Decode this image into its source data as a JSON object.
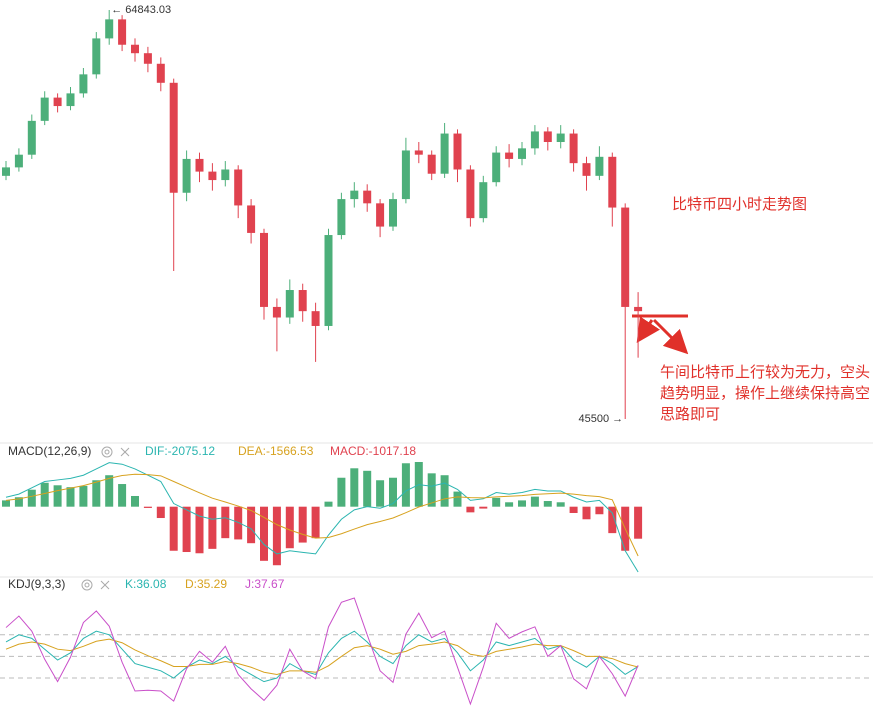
{
  "chart_data": [
    {
      "type": "candlestick",
      "title": "比特币四小时走势图",
      "annotation": "午间比特币上行较为无力，空头趋势明显，操作上继续保持高空思路即可",
      "up_color": "#4caf7a",
      "down_color": "#e0424f",
      "open": [
        57000,
        57400,
        58000,
        59600,
        60700,
        60300,
        60900,
        61800,
        63500,
        64400,
        63200,
        62800,
        62300,
        61400,
        56200,
        57800,
        57200,
        56800,
        57300,
        55600,
        54300,
        50800,
        50300,
        51600,
        50600,
        49900,
        54200,
        55900,
        56300,
        55700,
        54600,
        55900,
        58200,
        58000,
        57100,
        59000,
        57300,
        55000,
        56700,
        58100,
        57800,
        58300,
        59100,
        58600,
        59000,
        57600,
        57000,
        57900,
        55500,
        50800
      ],
      "close": [
        57400,
        58000,
        59600,
        60700,
        60300,
        60900,
        61800,
        63500,
        64400,
        63200,
        62800,
        62300,
        61400,
        56200,
        57800,
        57200,
        56800,
        57300,
        55600,
        54300,
        50800,
        50300,
        51600,
        50600,
        49900,
        54200,
        55900,
        56300,
        55700,
        54600,
        55900,
        58200,
        58000,
        57100,
        59000,
        57300,
        55000,
        56700,
        58100,
        57800,
        58300,
        59100,
        58600,
        59000,
        57600,
        57000,
        57900,
        55500,
        50800,
        50600
      ],
      "high": [
        57700,
        58300,
        59900,
        61000,
        60900,
        61200,
        62100,
        63800,
        64843.03,
        64600,
        63500,
        63100,
        62600,
        61600,
        58200,
        58100,
        57600,
        57700,
        57500,
        55900,
        54500,
        51200,
        52100,
        51900,
        51000,
        54500,
        56200,
        56700,
        56600,
        55900,
        56200,
        58800,
        58600,
        58200,
        59500,
        59200,
        57500,
        57000,
        58400,
        58500,
        58600,
        59400,
        59300,
        59400,
        59200,
        57900,
        58400,
        58100,
        55700,
        51500
      ],
      "low": [
        56800,
        57200,
        57800,
        59400,
        60000,
        60100,
        60700,
        61600,
        63200,
        62900,
        62400,
        61900,
        61000,
        52500,
        55800,
        56700,
        56300,
        56500,
        55000,
        53800,
        50200,
        48700,
        50000,
        50100,
        48200,
        49700,
        54000,
        55500,
        55300,
        54100,
        54400,
        55700,
        57600,
        56800,
        56900,
        56700,
        54600,
        54800,
        56500,
        57400,
        57500,
        58000,
        58200,
        58300,
        57200,
        56300,
        56800,
        54600,
        45500,
        48400
      ],
      "high_marker": {
        "value": 64843.03,
        "label": "← 64843.03"
      },
      "low_marker": {
        "value": 45500,
        "label": "45500 →"
      }
    },
    {
      "type": "combo",
      "title": "MACD(12,26,9)",
      "series": [
        {
          "label": "DIF:-2075.12",
          "color": "#2bb5b0",
          "kind": "line",
          "values": [
            300,
            400,
            600,
            800,
            850,
            900,
            1000,
            1200,
            1400,
            1350,
            1200,
            1000,
            800,
            100,
            -100,
            -300,
            -400,
            -350,
            -500,
            -700,
            -1200,
            -1500,
            -1400,
            -1450,
            -1500,
            -900,
            -400,
            -100,
            0,
            -50,
            100,
            500,
            700,
            650,
            750,
            550,
            200,
            250,
            450,
            400,
            450,
            550,
            500,
            500,
            300,
            150,
            200,
            -200,
            -1400,
            -2075.12
          ]
        },
        {
          "label": "DEA:-1566.53",
          "color": "#d7a21f",
          "kind": "line",
          "values": [
            200,
            250,
            330,
            420,
            510,
            590,
            670,
            780,
            900,
            990,
            1030,
            1020,
            980,
            800,
            620,
            440,
            270,
            150,
            20,
            -120,
            -340,
            -570,
            -740,
            -880,
            -1000,
            -980,
            -860,
            -710,
            -570,
            -470,
            -360,
            -190,
            -10,
            120,
            250,
            310,
            290,
            280,
            310,
            330,
            350,
            390,
            410,
            430,
            400,
            350,
            320,
            220,
            -700,
            -1566.53
          ]
        },
        {
          "label": "MACD:-1017.18",
          "color": "#e0424f",
          "up_color": "#4caf7a",
          "kind": "bar",
          "values": [
            200,
            300,
            540,
            760,
            680,
            620,
            660,
            840,
            1000,
            720,
            340,
            -40,
            -360,
            -1400,
            -1440,
            -1480,
            -1340,
            -1000,
            -1040,
            -1160,
            -1720,
            -1860,
            -1320,
            -1140,
            -1000,
            160,
            920,
            1220,
            1140,
            840,
            920,
            1380,
            1420,
            1060,
            1000,
            480,
            -180,
            -60,
            280,
            140,
            200,
            320,
            180,
            140,
            -200,
            -400,
            -240,
            -840,
            -1400,
            -1017.18
          ]
        }
      ]
    },
    {
      "type": "line",
      "title": "KDJ(9,3,3)",
      "levels": [
        80,
        50,
        20
      ],
      "series": [
        {
          "label": "K:36.08",
          "color": "#2bb5b0",
          "values": [
            70,
            80,
            75,
            60,
            45,
            55,
            75,
            85,
            80,
            60,
            40,
            35,
            30,
            20,
            35,
            45,
            40,
            50,
            35,
            25,
            15,
            20,
            40,
            30,
            25,
            55,
            75,
            85,
            70,
            50,
            40,
            65,
            80,
            70,
            75,
            55,
            30,
            45,
            70,
            65,
            70,
            75,
            60,
            65,
            45,
            35,
            50,
            40,
            25,
            36.08
          ]
        },
        {
          "label": "D:35.29",
          "color": "#d7a21f",
          "values": [
            60,
            67,
            70,
            67,
            60,
            58,
            64,
            71,
            74,
            69,
            59,
            51,
            44,
            36,
            36,
            39,
            39,
            43,
            40,
            35,
            28,
            25,
            30,
            30,
            28,
            37,
            50,
            62,
            65,
            60,
            53,
            57,
            65,
            67,
            70,
            65,
            53,
            50,
            57,
            60,
            63,
            67,
            65,
            65,
            58,
            50,
            50,
            47,
            40,
            35.29
          ]
        },
        {
          "label": "J:37.67",
          "color": "#c94fc9",
          "values": [
            90,
            106,
            85,
            46,
            15,
            49,
            97,
            113,
            92,
            42,
            2,
            3,
            2,
            -12,
            33,
            57,
            42,
            64,
            25,
            5,
            -11,
            10,
            60,
            30,
            19,
            91,
            125,
            131,
            80,
            30,
            14,
            81,
            110,
            76,
            85,
            35,
            -16,
            35,
            96,
            75,
            84,
            91,
            50,
            65,
            19,
            5,
            50,
            26,
            -5,
            37.67
          ]
        }
      ]
    }
  ]
}
